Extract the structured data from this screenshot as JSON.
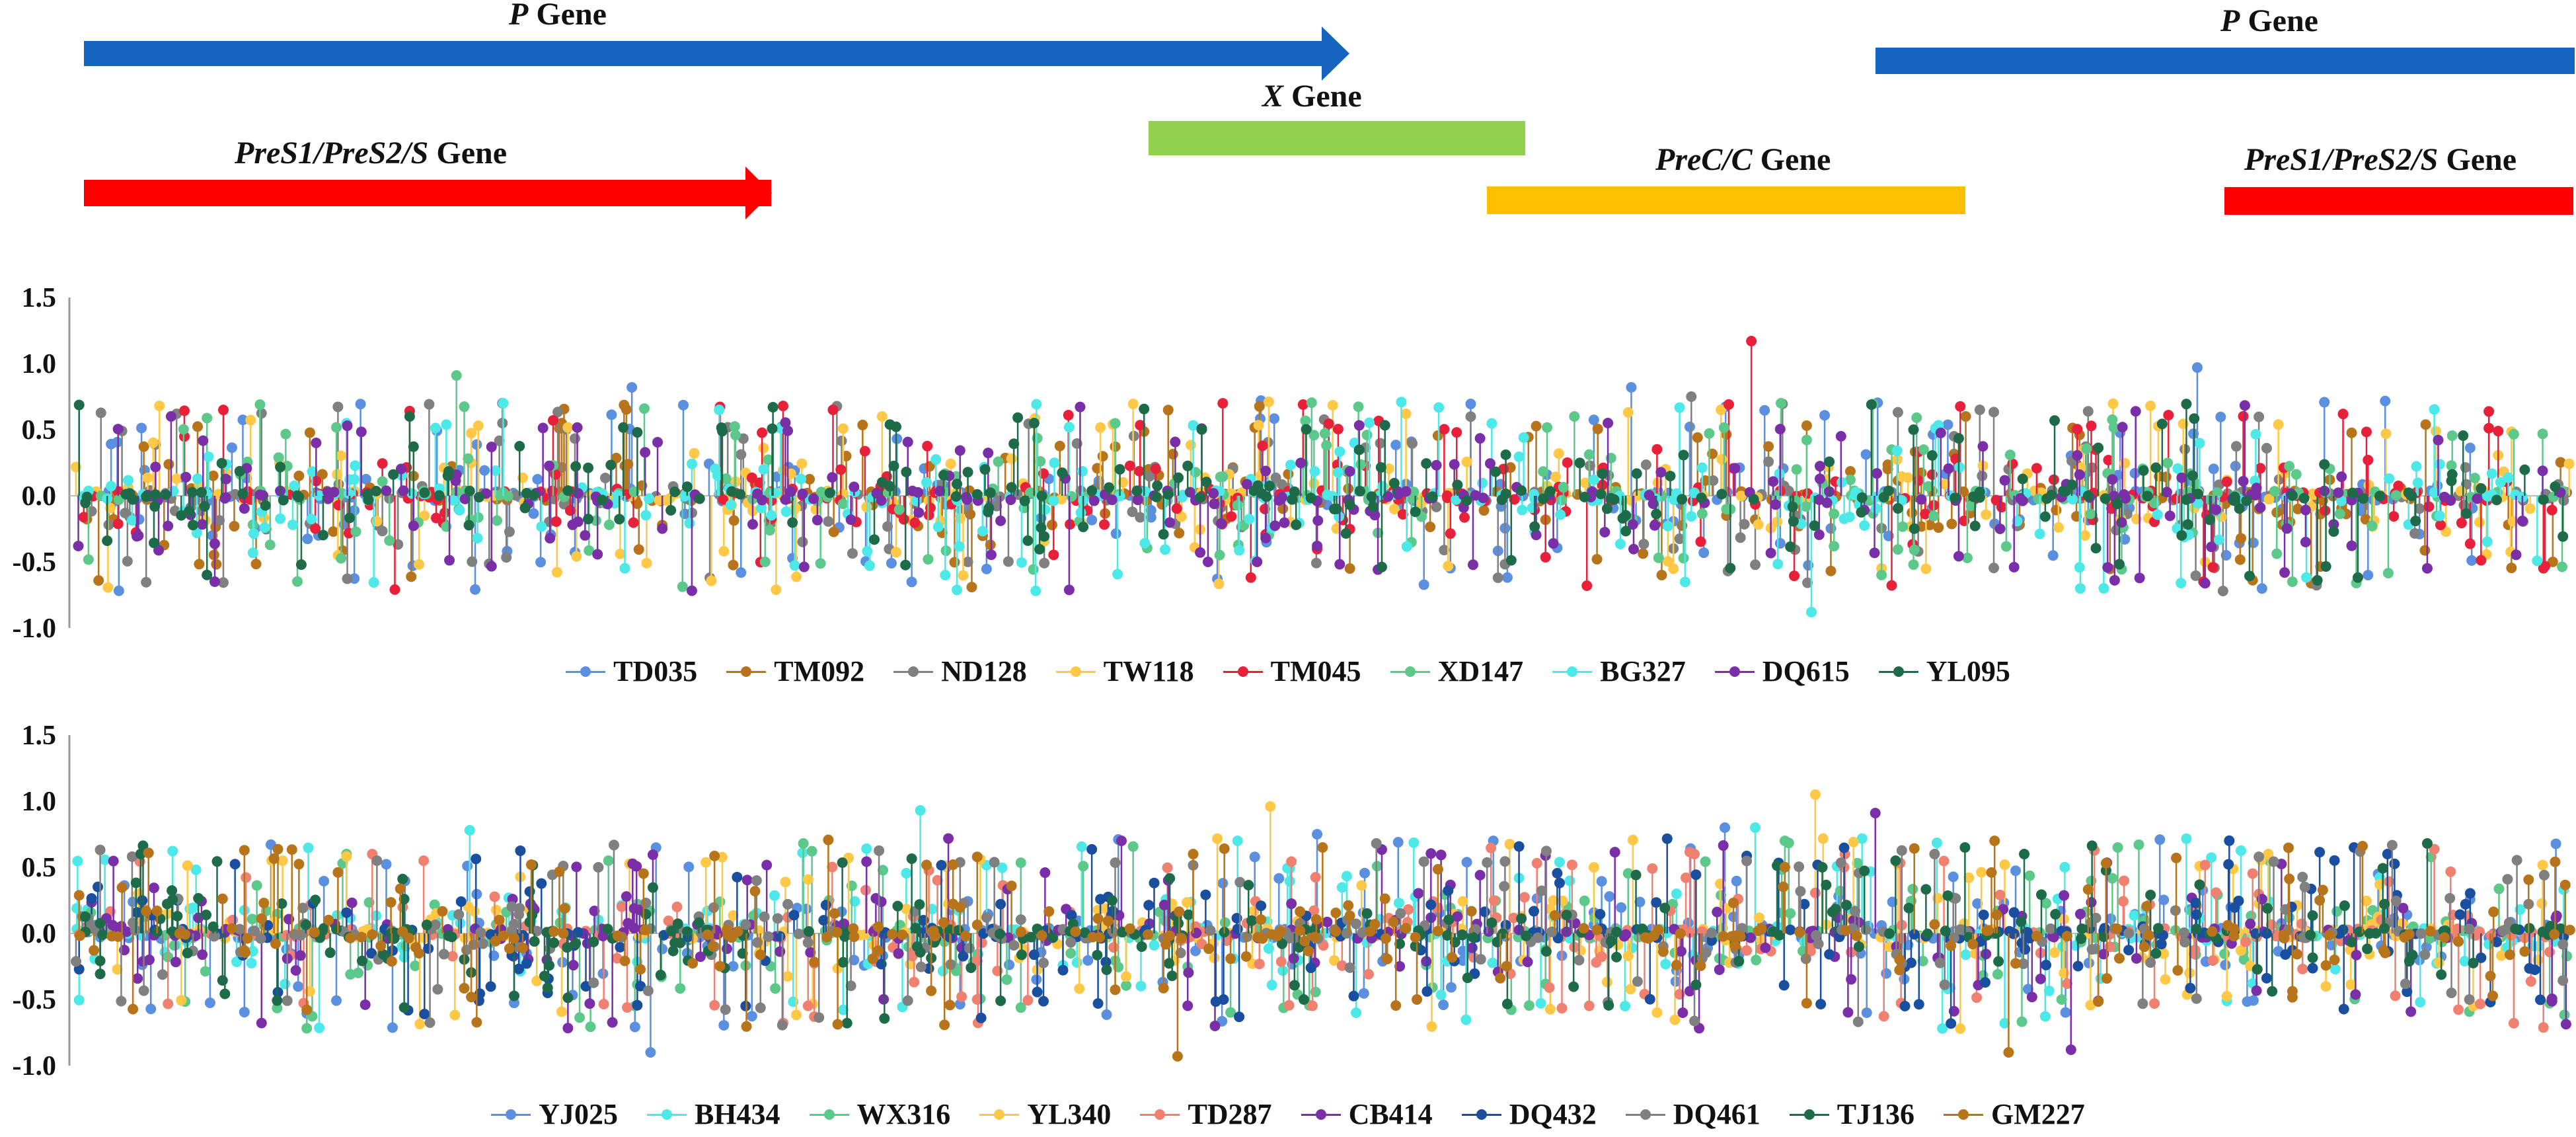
{
  "gene_map": {
    "genes": [
      {
        "name": "P",
        "suffix": " Gene",
        "color": "#1565C0",
        "shape": "arrow"
      },
      {
        "name": "X",
        "suffix": " Gene",
        "color": "#92D050",
        "shape": "bar"
      },
      {
        "name": "PreS1/PreS2/S",
        "suffix": " Gene",
        "color": "#FF0000",
        "shape": "arrow"
      },
      {
        "name": "PreC/C",
        "suffix": " Gene",
        "color": "#FFC000",
        "shape": "bar"
      },
      {
        "name": "P",
        "suffix": " Gene",
        "color": "#1565C0",
        "shape": "bar"
      },
      {
        "name": "PreS1/PreS2/S",
        "suffix": " Gene",
        "color": "#FF0000",
        "shape": "bar"
      }
    ]
  },
  "chart_data": [
    {
      "type": "scatter",
      "subtype": "stem",
      "title": "",
      "xlabel": "",
      "ylabel": "",
      "ylim": [
        -1.0,
        1.5
      ],
      "yticks": [
        "1.5",
        "1.0",
        "0.5",
        "0.0",
        "-0.5",
        "-1.0"
      ],
      "n_positions": 3200,
      "series": [
        {
          "name": "TD035",
          "color": "#5B8FE0",
          "peak_values": [
            0.82,
            0.97,
            0.82,
            0.72,
            -0.45
          ]
        },
        {
          "name": "TM092",
          "color": "#B8741A",
          "peak_values": [
            -0.6,
            -0.55,
            -0.5,
            0.6,
            -0.48
          ]
        },
        {
          "name": "ND128",
          "color": "#808080",
          "peak_values": [
            0.75,
            0.7,
            0.65,
            0.62,
            -0.5
          ]
        },
        {
          "name": "TW118",
          "color": "#FFC846",
          "peak_values": [
            0.65,
            0.68,
            0.62,
            0.6,
            -0.45
          ]
        },
        {
          "name": "TM045",
          "color": "#E8203A",
          "peak_values": [
            1.17,
            0.69,
            0.65,
            -0.68,
            -0.65
          ]
        },
        {
          "name": "XD147",
          "color": "#5CC98B",
          "peak_values": [
            0.7,
            0.91,
            0.69,
            -0.65,
            0.6
          ]
        },
        {
          "name": "BG327",
          "color": "#4DE8E8",
          "peak_values": [
            -0.88,
            -0.7,
            -0.66,
            0.7,
            -0.6
          ]
        },
        {
          "name": "DQ615",
          "color": "#7A2FA8",
          "peak_values": [
            0.45,
            -0.5,
            0.55,
            -0.5,
            0.4
          ]
        },
        {
          "name": "YL095",
          "color": "#1E6B4A",
          "peak_values": [
            0.69,
            0.6,
            0.55,
            0.5,
            -0.3
          ]
        }
      ]
    },
    {
      "type": "scatter",
      "subtype": "stem",
      "title": "",
      "xlabel": "",
      "ylabel": "",
      "ylim": [
        -1.0,
        1.5
      ],
      "yticks": [
        "1.5",
        "1.0",
        "0.5",
        "0.0",
        "-0.5",
        "-1.0"
      ],
      "n_positions": 3200,
      "series": [
        {
          "name": "YJ025",
          "color": "#5B8FE0",
          "peak_values": [
            0.8,
            0.75,
            0.7,
            -0.9,
            -0.6
          ]
        },
        {
          "name": "BH434",
          "color": "#4DE8E8",
          "peak_values": [
            0.8,
            0.78,
            0.93,
            -0.6,
            0.7
          ]
        },
        {
          "name": "WX316",
          "color": "#5CC98B",
          "peak_values": [
            0.7,
            0.65,
            0.6,
            -0.5,
            0.55
          ]
        },
        {
          "name": "YL340",
          "color": "#FFC846",
          "peak_values": [
            1.05,
            0.96,
            0.6,
            0.55,
            -0.55
          ]
        },
        {
          "name": "TD287",
          "color": "#F08070",
          "peak_values": [
            0.6,
            0.55,
            0.6,
            -0.5,
            0.5
          ]
        },
        {
          "name": "CB414",
          "color": "#7A2FA8",
          "peak_values": [
            0.91,
            -0.88,
            0.7,
            -0.6,
            -0.7
          ]
        },
        {
          "name": "DQ432",
          "color": "#1A4FA0",
          "peak_values": [
            -0.55,
            -0.5,
            -0.45,
            0.6,
            -0.4
          ]
        },
        {
          "name": "DQ461",
          "color": "#808080",
          "peak_values": [
            0.6,
            0.55,
            -0.5,
            0.5,
            -0.45
          ]
        },
        {
          "name": "TJ136",
          "color": "#1E6B4A",
          "peak_values": [
            0.65,
            0.6,
            0.55,
            -0.5,
            0.5
          ]
        },
        {
          "name": "GM227",
          "color": "#B8741A",
          "peak_values": [
            0.7,
            -0.93,
            0.65,
            -0.9,
            0.6
          ]
        }
      ]
    }
  ]
}
